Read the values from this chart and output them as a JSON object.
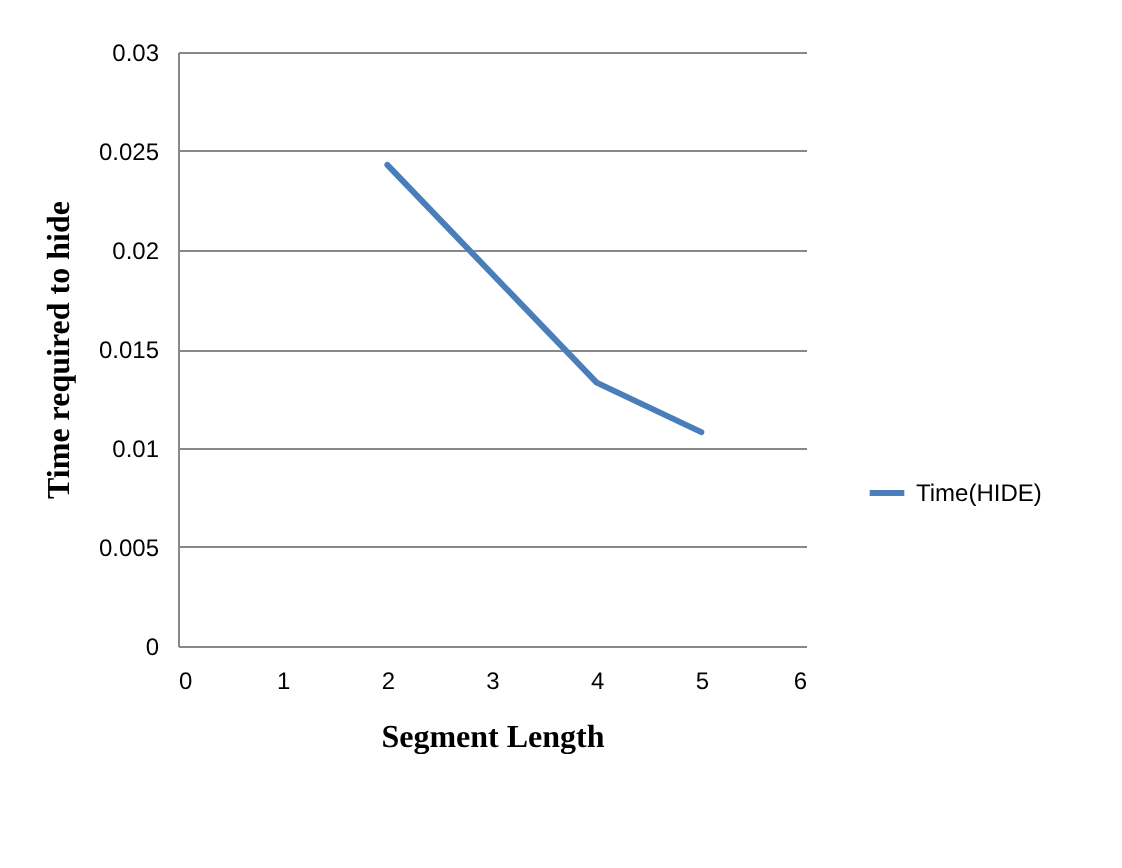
{
  "chart_data": {
    "type": "line",
    "xlabel": "Segment Length",
    "ylabel": "Time required to hide",
    "x": [
      2,
      4,
      5
    ],
    "series": [
      {
        "name": "Time(HIDE)",
        "color": "#4a7ebb",
        "values": [
          0.0243,
          0.0133,
          0.0108
        ]
      }
    ],
    "xlim": [
      0,
      6
    ],
    "xticks": [
      0,
      1,
      2,
      3,
      4,
      5,
      6
    ],
    "ylim": [
      0,
      0.03
    ],
    "yticks": [
      0,
      0.005,
      0.01,
      0.015,
      0.02,
      0.025,
      0.03
    ],
    "grid": "y",
    "legend": "right",
    "marker": "none",
    "line_style": "solid"
  }
}
